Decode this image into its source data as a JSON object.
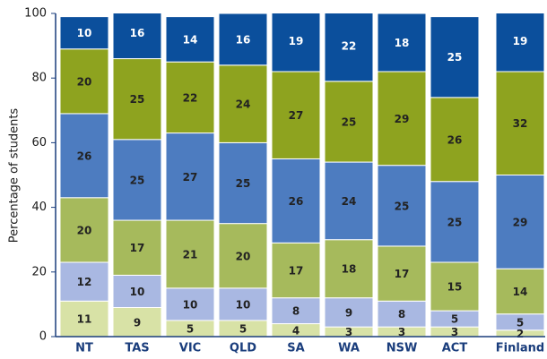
{
  "chart_data": {
    "type": "stacked_bar",
    "y_label": "Percentage of students",
    "categories": [
      "NT",
      "TAS",
      "VIC",
      "QLD",
      "SA",
      "WA",
      "NSW",
      "ACT",
      "Finland"
    ],
    "series": [
      {
        "color": "#d8e2a6",
        "label_color": "#222222",
        "values": [
          11,
          9,
          5,
          5,
          4,
          3,
          3,
          3,
          2
        ]
      },
      {
        "color": "#a9b8e2",
        "label_color": "#222222",
        "values": [
          12,
          10,
          10,
          10,
          8,
          9,
          8,
          5,
          5
        ]
      },
      {
        "color": "#a6ba5c",
        "label_color": "#222222",
        "values": [
          20,
          17,
          21,
          20,
          17,
          18,
          17,
          15,
          14
        ]
      },
      {
        "color": "#4d7cc0",
        "label_color": "#222222",
        "values": [
          26,
          25,
          27,
          25,
          26,
          24,
          25,
          25,
          29
        ]
      },
      {
        "color": "#8ea31f",
        "label_color": "#222222",
        "values": [
          20,
          25,
          22,
          24,
          27,
          25,
          29,
          26,
          32
        ]
      },
      {
        "color": "#0b4f9c",
        "label_color": "#ffffff",
        "values": [
          10,
          16,
          14,
          16,
          19,
          22,
          18,
          25,
          19
        ]
      }
    ],
    "ylim": [
      0,
      100
    ],
    "yticks": [
      0,
      20,
      40,
      60,
      80,
      100
    ]
  }
}
